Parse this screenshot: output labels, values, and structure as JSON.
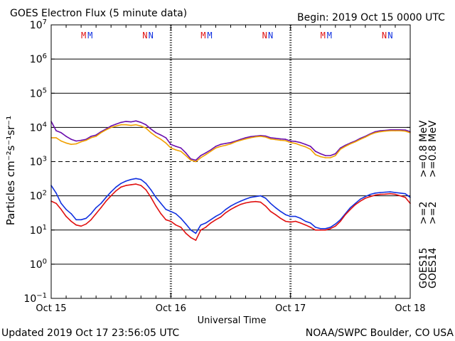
{
  "page": {
    "title": "GOES Electron Flux (5 minute data)",
    "begin": "Begin: 2019 Oct 15 0000 UTC",
    "updated": "Updated 2019 Oct 17 23:56:05 UTC",
    "credit": "NOAA/SWPC Boulder, CO USA"
  },
  "chart_data": {
    "type": "line",
    "title": "GOES Electron Flux (5 minute data)",
    "xlabel": "Universal Time",
    "ylabel": "Particles cm⁻²s⁻¹sr⁻¹",
    "yscale": "log",
    "ylim": [
      0.1,
      10000000
    ],
    "xlim": [
      0,
      72
    ],
    "x_unit": "hours since 2019 Oct 15 0000 UTC",
    "x_ticks": [
      {
        "x": 0,
        "label": "Oct 15"
      },
      {
        "x": 24,
        "label": "Oct 16"
      },
      {
        "x": 48,
        "label": "Oct 17"
      },
      {
        "x": 72,
        "label": "Oct 18"
      }
    ],
    "y_ticks": [
      {
        "exp": "7",
        "value": 10000000
      },
      {
        "exp": "6",
        "value": 1000000
      },
      {
        "exp": "5",
        "value": 100000
      },
      {
        "exp": "4",
        "value": 10000
      },
      {
        "exp": "3",
        "value": 1000
      },
      {
        "exp": "2",
        "value": 100
      },
      {
        "exp": "1",
        "value": 10
      },
      {
        "exp": "0",
        "value": 1
      },
      {
        "exp": "−1",
        "value": 0.1
      }
    ],
    "grid": "solid lines at 10^6, 10^5, 10^4, 10^2, 10^1, 10^0; dashed line at 10^3",
    "markers": [
      {
        "x": 6.5,
        "label": "M",
        "color": "#e01010"
      },
      {
        "x": 7.8,
        "label": "M",
        "color": "#1030e0"
      },
      {
        "x": 18.8,
        "label": "N",
        "color": "#e01010"
      },
      {
        "x": 20.0,
        "label": "N",
        "color": "#1030e0"
      },
      {
        "x": 30.5,
        "label": "M",
        "color": "#e01010"
      },
      {
        "x": 31.8,
        "label": "M",
        "color": "#1030e0"
      },
      {
        "x": 42.8,
        "label": "N",
        "color": "#e01010"
      },
      {
        "x": 44.0,
        "label": "N",
        "color": "#1030e0"
      },
      {
        "x": 54.5,
        "label": "M",
        "color": "#e01010"
      },
      {
        "x": 55.8,
        "label": "M",
        "color": "#1030e0"
      },
      {
        "x": 66.8,
        "label": "N",
        "color": "#e01010"
      },
      {
        "x": 68.0,
        "label": "N",
        "color": "#1030e0"
      }
    ],
    "series": [
      {
        "legend": ">=0.8  MeV",
        "color": "#6a0dad",
        "x": [
          0,
          1,
          2,
          3,
          4,
          5,
          6,
          7,
          8,
          9,
          10,
          11,
          12,
          13,
          14,
          15,
          16,
          17,
          18,
          19,
          20,
          21,
          22,
          23,
          24,
          25,
          26,
          27,
          28,
          29,
          30,
          31,
          32,
          33,
          34,
          35,
          36,
          37,
          38,
          39,
          40,
          41,
          42,
          43,
          44,
          45,
          46,
          47,
          48,
          49,
          50,
          51,
          52,
          53,
          54,
          55,
          56,
          57,
          58,
          59,
          60,
          61,
          62,
          63,
          64,
          65,
          66,
          67,
          68,
          69,
          70,
          71,
          72
        ],
        "y": [
          15000,
          8000,
          7000,
          5500,
          4500,
          4000,
          4200,
          4500,
          5500,
          6000,
          7500,
          9000,
          11000,
          12500,
          14000,
          15000,
          14500,
          15500,
          14000,
          12000,
          9000,
          7000,
          6000,
          5000,
          3200,
          2800,
          2500,
          1800,
          1200,
          1100,
          1500,
          1800,
          2200,
          2800,
          3200,
          3400,
          3600,
          4000,
          4500,
          5000,
          5400,
          5600,
          5800,
          5600,
          5000,
          4800,
          4600,
          4500,
          4000,
          3900,
          3600,
          3200,
          2800,
          2000,
          1700,
          1500,
          1500,
          1700,
          2500,
          3000,
          3500,
          4000,
          4800,
          5500,
          6500,
          7500,
          8000,
          8200,
          8500,
          8500,
          8500,
          8400,
          7500
        ]
      },
      {
        "legend": ">=0.8  MeV",
        "color": "#f0a000",
        "x": [
          0,
          1,
          2,
          3,
          4,
          5,
          6,
          7,
          8,
          9,
          10,
          11,
          12,
          13,
          14,
          15,
          16,
          17,
          18,
          19,
          20,
          21,
          22,
          23,
          24,
          25,
          26,
          27,
          28,
          29,
          30,
          31,
          32,
          33,
          34,
          35,
          36,
          37,
          38,
          39,
          40,
          41,
          42,
          43,
          44,
          45,
          46,
          47,
          48,
          49,
          50,
          51,
          52,
          53,
          54,
          55,
          56,
          57,
          58,
          59,
          60,
          61,
          62,
          63,
          64,
          65,
          66,
          67,
          68,
          69,
          70,
          71,
          72
        ],
        "y": [
          5000,
          5000,
          4000,
          3500,
          3200,
          3300,
          3800,
          4200,
          5000,
          5500,
          7000,
          8500,
          10000,
          11000,
          12000,
          12000,
          11500,
          12000,
          11000,
          9500,
          7000,
          5500,
          4500,
          3500,
          2500,
          2200,
          2000,
          1500,
          1100,
          1000,
          1300,
          1600,
          2000,
          2500,
          2800,
          3000,
          3300,
          3800,
          4200,
          4600,
          5000,
          5300,
          5500,
          5200,
          4600,
          4400,
          4200,
          4100,
          3600,
          3400,
          3000,
          2700,
          2300,
          1600,
          1400,
          1300,
          1300,
          1500,
          2300,
          2800,
          3300,
          3800,
          4500,
          5200,
          6200,
          7000,
          7500,
          7800,
          8000,
          8000,
          8000,
          7800,
          7000
        ]
      },
      {
        "legend": ">=2  MeV",
        "color": "#1030e0",
        "x": [
          0,
          1,
          2,
          3,
          4,
          5,
          6,
          7,
          8,
          9,
          10,
          11,
          12,
          13,
          14,
          15,
          16,
          17,
          18,
          19,
          20,
          21,
          22,
          23,
          24,
          25,
          26,
          27,
          28,
          29,
          30,
          31,
          32,
          33,
          34,
          35,
          36,
          37,
          38,
          39,
          40,
          41,
          42,
          43,
          44,
          45,
          46,
          47,
          48,
          49,
          50,
          51,
          52,
          53,
          54,
          55,
          56,
          57,
          58,
          59,
          60,
          61,
          62,
          63,
          64,
          65,
          66,
          67,
          68,
          69,
          70,
          71,
          72
        ],
        "y": [
          200,
          120,
          60,
          40,
          30,
          20,
          20,
          22,
          30,
          45,
          60,
          90,
          130,
          180,
          230,
          270,
          300,
          320,
          300,
          230,
          150,
          90,
          60,
          40,
          35,
          30,
          22,
          15,
          10,
          8,
          14,
          16,
          20,
          25,
          30,
          40,
          50,
          60,
          70,
          80,
          90,
          95,
          100,
          85,
          60,
          45,
          35,
          28,
          25,
          25,
          22,
          18,
          16,
          12,
          11,
          11,
          12,
          15,
          20,
          30,
          45,
          60,
          80,
          95,
          110,
          120,
          125,
          128,
          130,
          125,
          120,
          115,
          90
        ]
      },
      {
        "legend": ">=2  MeV",
        "color": "#e01010",
        "x": [
          0,
          1,
          2,
          3,
          4,
          5,
          6,
          7,
          8,
          9,
          10,
          11,
          12,
          13,
          14,
          15,
          16,
          17,
          18,
          19,
          20,
          21,
          22,
          23,
          24,
          25,
          26,
          27,
          28,
          29,
          30,
          31,
          32,
          33,
          34,
          35,
          36,
          37,
          38,
          39,
          40,
          41,
          42,
          43,
          44,
          45,
          46,
          47,
          48,
          49,
          50,
          51,
          52,
          53,
          54,
          55,
          56,
          57,
          58,
          59,
          60,
          61,
          62,
          63,
          64,
          65,
          66,
          67,
          68,
          69,
          70,
          71,
          72
        ],
        "y": [
          70,
          60,
          40,
          25,
          18,
          14,
          13,
          15,
          20,
          30,
          45,
          70,
          100,
          140,
          180,
          200,
          210,
          220,
          200,
          150,
          90,
          50,
          30,
          20,
          18,
          14,
          12,
          8,
          6,
          5,
          10,
          12,
          16,
          20,
          24,
          32,
          40,
          48,
          56,
          62,
          66,
          68,
          65,
          50,
          35,
          28,
          22,
          18,
          17,
          18,
          16,
          14,
          12,
          10,
          10,
          10,
          11,
          13,
          18,
          28,
          40,
          55,
          70,
          85,
          95,
          105,
          110,
          112,
          115,
          110,
          100,
          90,
          60
        ]
      }
    ]
  },
  "legend_right": {
    "row1": [
      {
        "text": ">=0.8  MeV",
        "color": "#6a0dad"
      },
      {
        "text": ">=0.8  MeV",
        "color": "#f0a000"
      }
    ],
    "row2": [
      {
        "text": ">=2",
        "color": "#1030e0"
      },
      {
        "text": ">=2",
        "color": "#e01010"
      }
    ],
    "row3": [
      {
        "text": "GOES15",
        "color": "#000000"
      },
      {
        "text": "GOES14",
        "color": "#000000"
      }
    ]
  }
}
